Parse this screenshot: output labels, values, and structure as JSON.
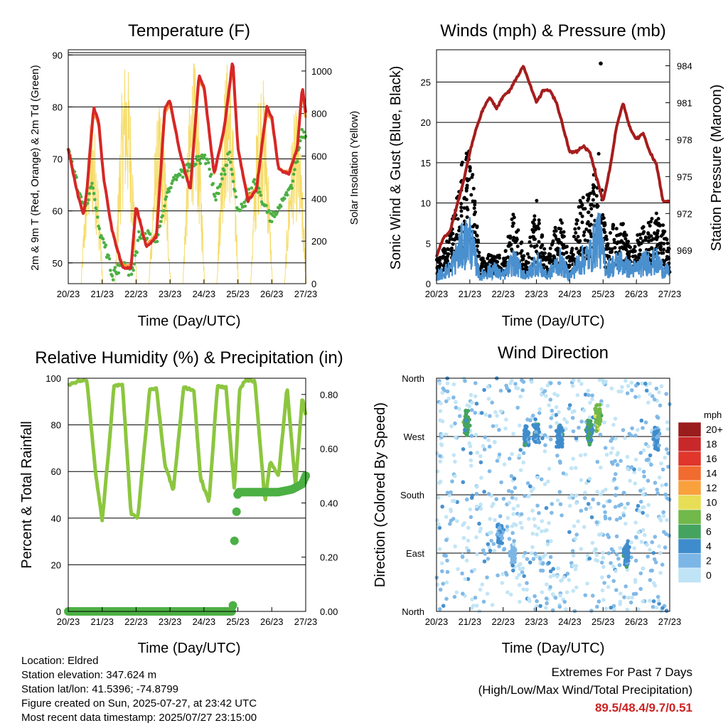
{
  "x_tick_labels": [
    "20/23",
    "21/23",
    "22/23",
    "23/23",
    "24/23",
    "25/23",
    "26/23",
    "27/23"
  ],
  "chart_data": [
    {
      "type": "line",
      "title": "Temperature (F)",
      "xlabel": "Time (Day/UTC)",
      "ylabel": "2m & 9m T (Red, Orange) & 2m Td (Green)",
      "ylabel_right": "Solar Insolation (Yellow)",
      "ylim": [
        46,
        91
      ],
      "ylim_right": [
        0,
        1100
      ],
      "yticks": [
        50,
        60,
        70,
        80,
        90
      ],
      "yticks_right": [
        0,
        200,
        400,
        600,
        800,
        1000
      ],
      "x_days": [
        0,
        7
      ],
      "series": [
        {
          "name": "2m T",
          "color": "#d62728",
          "x": [
            0,
            0.25,
            0.45,
            0.55,
            0.75,
            0.9,
            1.05,
            1.3,
            1.6,
            1.85,
            2.0,
            2.3,
            2.6,
            2.85,
            3.0,
            3.3,
            3.6,
            3.85,
            4.0,
            4.3,
            4.6,
            4.85,
            5.0,
            5.3,
            5.55,
            5.85,
            6.0,
            6.2,
            6.5,
            6.75,
            6.9,
            7.0
          ],
          "y": [
            72,
            64,
            59,
            64,
            80,
            77,
            66,
            56,
            49,
            49,
            61,
            53,
            55,
            80,
            81,
            71,
            64,
            86,
            84,
            67,
            76,
            89,
            72,
            62,
            64,
            80,
            78,
            68,
            67,
            72,
            84,
            79
          ]
        },
        {
          "name": "9m T",
          "color": "#ff9d3a",
          "x": [
            0,
            0.25,
            0.45,
            0.55,
            0.75,
            0.9,
            1.05,
            1.3,
            1.6,
            1.85,
            2.0,
            2.3,
            2.6,
            2.85,
            3.0,
            3.3,
            3.6,
            3.85,
            4.0,
            4.3,
            4.6,
            4.85,
            5.0,
            5.3,
            5.55,
            5.85,
            6.0,
            6.2,
            6.5,
            6.75,
            6.9,
            7.0
          ],
          "y": [
            72,
            64,
            59.5,
            64,
            79,
            76.5,
            66,
            56,
            49.5,
            49.5,
            60.5,
            53.5,
            55.5,
            79,
            80.5,
            71,
            64.5,
            85,
            83.5,
            67,
            75.5,
            88,
            72,
            62.5,
            64.5,
            79,
            77.5,
            68,
            67.5,
            72,
            83,
            78
          ]
        },
        {
          "name": "2m Td",
          "color": "#4cb044",
          "x": [
            0,
            0.3,
            0.5,
            0.7,
            0.9,
            1.1,
            1.3,
            1.6,
            1.9,
            2.1,
            2.3,
            2.6,
            2.9,
            3.1,
            3.5,
            3.8,
            4.1,
            4.35,
            4.5,
            4.75,
            5.0,
            5.2,
            5.5,
            5.8,
            6.0,
            6.3,
            6.6,
            6.9,
            7.0
          ],
          "y": [
            72,
            64,
            60,
            66,
            57,
            53,
            48,
            50,
            48,
            56,
            55,
            54,
            63,
            66,
            68,
            70,
            70,
            62,
            66,
            71,
            60,
            61,
            66,
            61,
            58,
            62,
            65,
            75,
            74
          ]
        }
      ],
      "solar_insolation_daily_peaks": [
        800,
        1080,
        840,
        1050,
        1060,
        1000,
        820
      ],
      "solar_peak_day_offsets": [
        0.7,
        1.7,
        2.7,
        3.7,
        4.7,
        5.7,
        6.7
      ]
    },
    {
      "type": "line",
      "title": "Winds (mph) & Pressure (mb)",
      "xlabel": "Time (Day/UTC)",
      "ylabel": "Sonic Wind & Gust (Blue, Black)",
      "ylabel_right": "Station Pressure (Maroon)",
      "ylim": [
        0,
        29
      ],
      "yticks": [
        0,
        5,
        10,
        15,
        20,
        25
      ],
      "ylim_right": [
        966.3,
        985.3
      ],
      "yticks_right": [
        969,
        972,
        975,
        978,
        981,
        984
      ],
      "x_days": [
        0,
        7
      ],
      "series": [
        {
          "name": "Station Pressure",
          "color": "#a51d1d",
          "x": [
            0,
            0.2,
            0.4,
            0.6,
            0.8,
            1.0,
            1.2,
            1.4,
            1.6,
            1.8,
            2.0,
            2.2,
            2.4,
            2.6,
            2.8,
            3.0,
            3.2,
            3.4,
            3.6,
            3.8,
            4.0,
            4.2,
            4.4,
            4.6,
            4.8,
            5.0,
            5.2,
            5.4,
            5.6,
            5.8,
            6.0,
            6.2,
            6.4,
            6.6,
            6.8,
            7.0
          ],
          "y": [
            968.5,
            970,
            970.5,
            972.5,
            974.5,
            977,
            979,
            980.5,
            981.5,
            980.5,
            981.5,
            982,
            983,
            984,
            982.5,
            981,
            982,
            982,
            981,
            979,
            977,
            977,
            977.5,
            977,
            975,
            973,
            975.5,
            979,
            981,
            979,
            978,
            978.5,
            977,
            976,
            973,
            973
          ]
        },
        {
          "name": "Sonic Wind (mean)",
          "color": "#4a90cf",
          "x": [
            0,
            0.4,
            0.75,
            1.0,
            1.3,
            1.7,
            2.0,
            2.3,
            2.7,
            3.0,
            3.3,
            3.7,
            4.0,
            4.3,
            4.65,
            4.85,
            5.1,
            5.5,
            5.8,
            6.0,
            6.3,
            6.6,
            6.8,
            7.0
          ],
          "y": [
            1,
            2,
            5,
            6,
            1,
            2,
            1,
            3,
            1,
            3,
            1,
            3,
            1,
            3,
            4,
            7,
            2,
            3,
            2,
            2,
            3,
            3,
            2,
            1.5
          ]
        },
        {
          "name": "Gust (mean)",
          "color": "#000000",
          "x": [
            0,
            0.4,
            0.75,
            1.0,
            1.3,
            1.7,
            2.0,
            2.3,
            2.7,
            3.0,
            3.3,
            3.7,
            4.0,
            4.3,
            4.65,
            4.85,
            5.1,
            5.5,
            5.8,
            6.0,
            6.3,
            6.6,
            6.8,
            7.0
          ],
          "y": [
            2,
            4,
            10,
            12,
            2,
            3,
            2,
            6,
            2,
            7,
            2,
            6,
            2,
            7,
            8,
            12,
            4,
            6,
            3,
            4,
            5,
            6,
            5,
            3
          ]
        }
      ],
      "gust_max": 27.3
    },
    {
      "type": "line",
      "title": "Relative Humidity (%) & Precipitation (in)",
      "xlabel": "Time (Day/UTC)",
      "ylabel": "Percent & Total Rainfall",
      "ylim": [
        0,
        100
      ],
      "yticks": [
        0,
        20,
        40,
        60,
        80,
        100
      ],
      "ylim_right": [
        0,
        0.86
      ],
      "yticks_right": [
        "0.00",
        "0.20",
        "0.40",
        "0.60",
        "0.80"
      ],
      "x_days": [
        0,
        7
      ],
      "series": [
        {
          "name": "Relative Humidity",
          "color": "#8cc63f",
          "x": [
            0,
            0.3,
            0.55,
            0.8,
            1.0,
            1.2,
            1.35,
            1.6,
            1.85,
            2.05,
            2.4,
            2.6,
            2.85,
            3.1,
            3.4,
            3.7,
            3.9,
            4.15,
            4.4,
            4.65,
            4.9,
            5.05,
            5.2,
            5.5,
            5.8,
            5.95,
            6.2,
            6.45,
            6.7,
            6.9,
            7.0
          ],
          "y": [
            97,
            99,
            99,
            60,
            39,
            70,
            97,
            97,
            42,
            40,
            95,
            96,
            63,
            52,
            96,
            95,
            57,
            47,
            97,
            96,
            52,
            95,
            99,
            99,
            47,
            64,
            58,
            96,
            54,
            92,
            84
          ]
        },
        {
          "name": "Total Precipitation",
          "color": "#4cb044",
          "x": [
            0,
            1,
            2,
            3,
            4,
            4.85,
            4.9,
            5.0,
            5.4,
            5.8,
            6.2,
            6.6,
            6.9,
            7.0
          ],
          "y": [
            0,
            0,
            0,
            0,
            0,
            0,
            0.26,
            0.44,
            0.44,
            0.44,
            0.44,
            0.45,
            0.47,
            0.5
          ]
        }
      ]
    },
    {
      "type": "scatter",
      "title": "Wind Direction",
      "xlabel": "Time (Day/UTC)",
      "ylabel": "Direction (Colored By Speed)",
      "yticks": [
        "North",
        "East",
        "South",
        "West",
        "North"
      ],
      "ytick_degrees": [
        0,
        90,
        180,
        270,
        360
      ],
      "x_days": [
        0,
        7
      ],
      "legend_title": "mph",
      "legend_labels": [
        "20+",
        "18",
        "16",
        "14",
        "12",
        "10",
        "8",
        "6",
        "4",
        "2",
        "0"
      ],
      "legend_colors": [
        "#9b1c1c",
        "#c8282a",
        "#e0362b",
        "#f26b2e",
        "#f9a13d",
        "#e7de55",
        "#71b84a",
        "#45a360",
        "#3f8ccc",
        "#7cb6e6",
        "#bfe4f6"
      ],
      "clusters": [
        {
          "day": 0.9,
          "dir": 290,
          "speed": 6
        },
        {
          "day": 2.7,
          "dir": 270,
          "speed": 4
        },
        {
          "day": 3.0,
          "dir": 275,
          "speed": 4
        },
        {
          "day": 3.7,
          "dir": 268,
          "speed": 4
        },
        {
          "day": 4.6,
          "dir": 280,
          "speed": 5
        },
        {
          "day": 4.85,
          "dir": 300,
          "speed": 8
        },
        {
          "day": 5.7,
          "dir": 90,
          "speed": 4
        },
        {
          "day": 6.6,
          "dir": 270,
          "speed": 3
        },
        {
          "day": 1.9,
          "dir": 120,
          "speed": 3
        },
        {
          "day": 2.3,
          "dir": 90,
          "speed": 2
        }
      ]
    }
  ],
  "info": {
    "location": "Location: Eldred",
    "elevation": "Station elevation: 347.624 m",
    "latlon": "Station lat/lon: 41.5396; -74.8799",
    "created": "Figure created on Sun, 2025-07-27, at 23:42 UTC",
    "recent": "Most recent data timestamp: 2025/07/27 23:15:00"
  },
  "extremes": {
    "line1": "Extremes For Past 7 Days",
    "line2": "(High/Low/Max Wind/Total Precipitation)",
    "values": "89.5/48.4/9.7/0.51"
  }
}
